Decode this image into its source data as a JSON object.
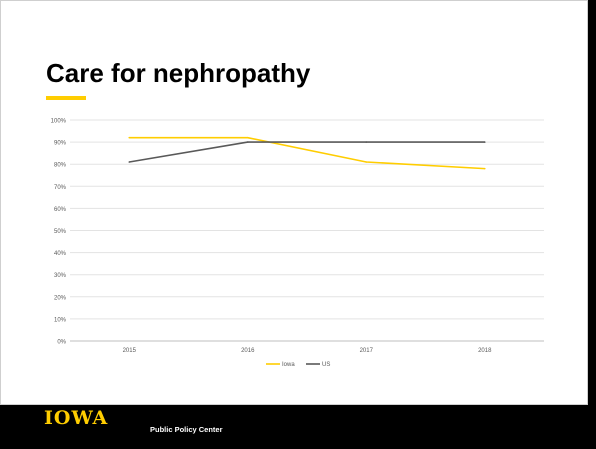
{
  "slide": {
    "title": "Care for nephropathy",
    "logo_text": "IOWA",
    "center_name": "Public Policy Center"
  },
  "colors": {
    "iowa_gold": "#FFCD00",
    "us_gray": "#595959"
  },
  "chart_data": {
    "type": "line",
    "title": "",
    "xlabel": "",
    "ylabel": "",
    "categories": [
      "2015",
      "2016",
      "2017",
      "2018"
    ],
    "y_ticks": [
      "0%",
      "10%",
      "20%",
      "30%",
      "40%",
      "50%",
      "60%",
      "70%",
      "80%",
      "90%",
      "100%"
    ],
    "ylim": [
      0,
      100
    ],
    "grid": true,
    "legend_position": "bottom",
    "series": [
      {
        "name": "Iowa",
        "values": [
          92,
          92,
          81,
          78
        ]
      },
      {
        "name": "US",
        "values": [
          81,
          90,
          90,
          90
        ]
      }
    ]
  }
}
